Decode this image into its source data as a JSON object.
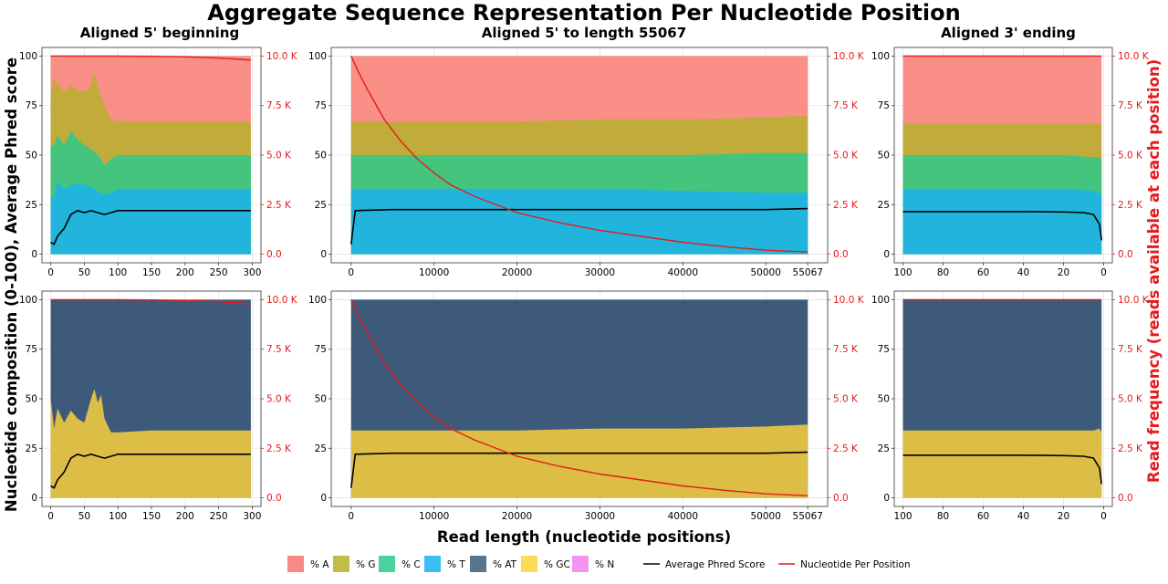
{
  "figure": {
    "title": "Aggregate Sequence Representation Per Nucleotide Position",
    "x_axis_title": "Read length (nucleotide positions)",
    "y_left_title": "Nucleotide composition (0-100), Average Phred score",
    "y_right_title": "Read frequency (reads available at each position)"
  },
  "legend": {
    "items": [
      {
        "label": "% A",
        "color": "#f8766d"
      },
      {
        "label": "% G",
        "color": "#b5b22b"
      },
      {
        "label": "% C",
        "color": "#29c98d"
      },
      {
        "label": "% T",
        "color": "#1ab2f1"
      },
      {
        "label": "% AT",
        "color": "#3d5a7a"
      },
      {
        "label": "% GC",
        "color": "#ffd43a"
      },
      {
        "label": "% N",
        "color": "#ee82ee"
      }
    ],
    "lines": [
      {
        "label": "Average Phred Score",
        "color": "#000000"
      },
      {
        "label": "Nucleotide Per Position",
        "color": "#e41a1c"
      }
    ]
  },
  "chart_data": [
    {
      "id": "p1",
      "type": "area",
      "title": "Aligned 5' beginning",
      "xlim": [
        0,
        300
      ],
      "xticks": [
        0,
        50,
        100,
        150,
        200,
        250,
        300
      ],
      "reverse_x": false,
      "ylim": [
        0,
        100
      ],
      "yticks": [
        0,
        25,
        50,
        75,
        100
      ],
      "y2lim": [
        0,
        10000
      ],
      "y2ticks": [
        "0.0",
        "2.5 K",
        "5.0 K",
        "7.5 K",
        "10.0 K"
      ],
      "stack_cumulative": {
        "x": [
          0,
          5,
          10,
          20,
          30,
          40,
          50,
          60,
          65,
          70,
          75,
          80,
          90,
          100,
          150,
          200,
          250,
          298
        ],
        "T": [
          30,
          28,
          37,
          33,
          35,
          36,
          35,
          34,
          33,
          32,
          31,
          30,
          31,
          33,
          33,
          33,
          33,
          33
        ],
        "C": [
          55,
          55,
          60,
          55,
          62,
          58,
          55,
          53,
          52,
          50,
          48,
          45,
          48,
          50,
          50,
          50,
          50,
          50
        ],
        "G": [
          80,
          88,
          86,
          82,
          85,
          83,
          82,
          85,
          92,
          85,
          80,
          75,
          68,
          67,
          67,
          67,
          67,
          67
        ],
        "A": [
          100,
          100,
          100,
          100,
          100,
          100,
          100,
          100,
          100,
          100,
          100,
          100,
          100,
          100,
          100,
          100,
          100,
          100
        ]
      },
      "phred": {
        "x": [
          0,
          5,
          10,
          20,
          30,
          40,
          50,
          60,
          70,
          80,
          90,
          100,
          150,
          200,
          250,
          298
        ],
        "y": [
          6,
          5,
          9,
          13,
          20,
          22,
          21,
          22,
          21,
          20,
          21,
          22,
          22,
          22,
          22,
          22
        ]
      },
      "read_freq": {
        "x": [
          0,
          100,
          150,
          200,
          250,
          298
        ],
        "y": [
          10000,
          10000,
          9990,
          9960,
          9900,
          9800
        ]
      }
    },
    {
      "id": "p2",
      "type": "area",
      "title": "Aligned 5' to length 55067",
      "xlim": [
        0,
        55067
      ],
      "xticks": [
        0,
        10000,
        20000,
        30000,
        40000,
        50000,
        55067
      ],
      "reverse_x": false,
      "ylim": [
        0,
        100
      ],
      "yticks": [
        0,
        25,
        50,
        75,
        100
      ],
      "y2lim": [
        0,
        10000
      ],
      "y2ticks": [
        "0.0",
        "2.5 K",
        "5.0 K",
        "7.5 K",
        "10.0 K"
      ],
      "stack_cumulative": {
        "x": [
          0,
          10000,
          20000,
          30000,
          40000,
          50000,
          55067
        ],
        "T": [
          33,
          33,
          33,
          33,
          32,
          31,
          31
        ],
        "C": [
          50,
          50,
          50,
          50,
          50,
          51,
          51
        ],
        "G": [
          67,
          67,
          67,
          68,
          68,
          69,
          70
        ],
        "A": [
          100,
          100,
          100,
          100,
          100,
          100,
          100
        ]
      },
      "phred": {
        "x": [
          0,
          500,
          5000,
          10000,
          20000,
          30000,
          40000,
          50000,
          55067
        ],
        "y": [
          5,
          22,
          22.5,
          22.5,
          22.5,
          22.5,
          22.5,
          22.5,
          23
        ]
      },
      "read_freq": {
        "x": [
          0,
          1000,
          2000,
          4000,
          6000,
          8000,
          10000,
          12000,
          15000,
          20000,
          25000,
          30000,
          35000,
          40000,
          45000,
          50000,
          55067
        ],
        "y": [
          10000,
          9100,
          8300,
          6800,
          5700,
          4800,
          4100,
          3500,
          2900,
          2100,
          1600,
          1200,
          900,
          600,
          380,
          200,
          110
        ]
      }
    },
    {
      "id": "p3",
      "type": "area",
      "title": "Aligned 3' ending",
      "xlim": [
        0,
        100
      ],
      "xticks": [
        100,
        80,
        60,
        40,
        20,
        0
      ],
      "reverse_x": true,
      "ylim": [
        0,
        100
      ],
      "yticks": [
        0,
        25,
        50,
        75,
        100
      ],
      "y2lim": [
        0,
        10000
      ],
      "y2ticks": [
        "0.0",
        "2.5 K",
        "5.0 K",
        "7.5 K",
        "10.0 K"
      ],
      "stack_cumulative": {
        "x": [
          100,
          80,
          60,
          40,
          20,
          5,
          2,
          1
        ],
        "T": [
          33,
          33,
          33,
          33,
          33,
          32,
          31,
          30
        ],
        "C": [
          50,
          50,
          50,
          50,
          50,
          49,
          49,
          48
        ],
        "G": [
          66,
          66,
          66,
          66,
          66,
          66,
          66,
          65
        ],
        "A": [
          100,
          100,
          100,
          100,
          100,
          100,
          100,
          100
        ]
      },
      "phred": {
        "x": [
          100,
          80,
          60,
          40,
          20,
          10,
          5,
          2,
          1
        ],
        "y": [
          21.5,
          21.5,
          21.5,
          21.5,
          21.3,
          21,
          20,
          15,
          7
        ]
      },
      "read_freq": {
        "x": [
          100,
          1
        ],
        "y": [
          10000,
          10000
        ]
      }
    },
    {
      "id": "p4",
      "type": "area",
      "title": "",
      "xlim": [
        0,
        300
      ],
      "xticks": [
        0,
        50,
        100,
        150,
        200,
        250,
        300
      ],
      "reverse_x": false,
      "ylim": [
        0,
        100
      ],
      "yticks": [
        0,
        25,
        50,
        75,
        100
      ],
      "y2lim": [
        0,
        10000
      ],
      "y2ticks": [
        "0.0",
        "2.5 K",
        "5.0 K",
        "7.5 K",
        "10.0 K"
      ],
      "stack_cumulative": {
        "x": [
          0,
          5,
          10,
          20,
          30,
          40,
          50,
          60,
          65,
          70,
          75,
          80,
          90,
          100,
          150,
          200,
          250,
          298
        ],
        "GC": [
          50,
          35,
          45,
          38,
          44,
          40,
          38,
          50,
          55,
          48,
          52,
          40,
          33,
          33,
          34,
          34,
          34,
          34
        ],
        "AT": [
          100,
          100,
          100,
          100,
          100,
          100,
          100,
          100,
          100,
          100,
          100,
          100,
          100,
          100,
          100,
          100,
          100,
          100
        ]
      },
      "phred": {
        "x": [
          0,
          5,
          10,
          20,
          30,
          40,
          50,
          60,
          70,
          80,
          90,
          100,
          150,
          200,
          250,
          298
        ],
        "y": [
          6,
          5,
          9,
          13,
          20,
          22,
          21,
          22,
          21,
          20,
          21,
          22,
          22,
          22,
          22,
          22
        ]
      },
      "read_freq": {
        "x": [
          0,
          100,
          150,
          200,
          250,
          298
        ],
        "y": [
          10000,
          10000,
          9990,
          9960,
          9900,
          9800
        ]
      }
    },
    {
      "id": "p5",
      "type": "area",
      "title": "",
      "xlim": [
        0,
        55067
      ],
      "xticks": [
        0,
        10000,
        20000,
        30000,
        40000,
        50000,
        55067
      ],
      "reverse_x": false,
      "ylim": [
        0,
        100
      ],
      "yticks": [
        0,
        25,
        50,
        75,
        100
      ],
      "y2lim": [
        0,
        10000
      ],
      "y2ticks": [
        "0.0",
        "2.5 K",
        "5.0 K",
        "7.5 K",
        "10.0 K"
      ],
      "stack_cumulative": {
        "x": [
          0,
          10000,
          20000,
          30000,
          40000,
          50000,
          55067
        ],
        "GC": [
          34,
          34,
          34,
          35,
          35,
          36,
          37
        ],
        "AT": [
          100,
          100,
          100,
          100,
          100,
          100,
          100
        ]
      },
      "phred": {
        "x": [
          0,
          500,
          5000,
          10000,
          20000,
          30000,
          40000,
          50000,
          55067
        ],
        "y": [
          5,
          22,
          22.5,
          22.5,
          22.5,
          22.5,
          22.5,
          22.5,
          23
        ]
      },
      "read_freq": {
        "x": [
          0,
          1000,
          2000,
          4000,
          6000,
          8000,
          10000,
          12000,
          15000,
          20000,
          25000,
          30000,
          35000,
          40000,
          45000,
          50000,
          55067
        ],
        "y": [
          10000,
          9100,
          8300,
          6800,
          5700,
          4800,
          4100,
          3500,
          2900,
          2100,
          1600,
          1200,
          900,
          600,
          380,
          200,
          110
        ]
      }
    },
    {
      "id": "p6",
      "type": "area",
      "title": "",
      "xlim": [
        0,
        100
      ],
      "xticks": [
        100,
        80,
        60,
        40,
        20,
        0
      ],
      "reverse_x": true,
      "ylim": [
        0,
        100
      ],
      "yticks": [
        0,
        25,
        50,
        75,
        100
      ],
      "y2lim": [
        0,
        10000
      ],
      "y2ticks": [
        "0.0",
        "2.5 K",
        "5.0 K",
        "7.5 K",
        "10.0 K"
      ],
      "stack_cumulative": {
        "x": [
          100,
          80,
          60,
          40,
          20,
          5,
          2,
          1
        ],
        "GC": [
          34,
          34,
          34,
          34,
          34,
          34,
          35,
          33
        ],
        "AT": [
          100,
          100,
          100,
          100,
          100,
          100,
          100,
          100
        ]
      },
      "phred": {
        "x": [
          100,
          80,
          60,
          40,
          20,
          10,
          5,
          2,
          1
        ],
        "y": [
          21.5,
          21.5,
          21.5,
          21.5,
          21.3,
          21,
          20,
          15,
          7
        ]
      },
      "read_freq": {
        "x": [
          100,
          1
        ],
        "y": [
          10000,
          10000
        ]
      }
    }
  ]
}
